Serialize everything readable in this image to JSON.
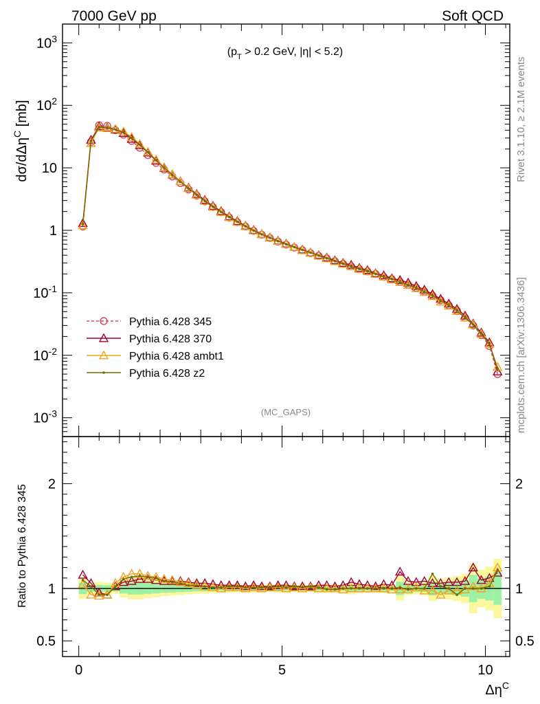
{
  "header": {
    "left": "7000 GeV pp",
    "right": "Soft QCD",
    "cut_label": "(p_T > 0.2 GeV, |η| < 5.2)",
    "watermark": "(MC_GAPS)",
    "side_rivet": "Rivet 3.1.10, ≥ 2.1M events",
    "side_mcplots": "mcplots.cern.ch [arXiv:1306.3436]"
  },
  "chart_data": [
    {
      "type": "line",
      "title": "",
      "xlabel": "Δη^C",
      "ylabel": "dσ/dΔη^C [mb]",
      "yscale": "log",
      "ylim": [
        0.0005,
        2000
      ],
      "xlim": [
        -0.4,
        10.6
      ],
      "y_ticks": [
        "10^-3",
        "10^-2",
        "10^-1",
        "1",
        "10",
        "10^2",
        "10^3"
      ],
      "legend_position": "middle-left",
      "x": [
        0.1,
        0.3,
        0.5,
        0.7,
        0.9,
        1.1,
        1.3,
        1.5,
        1.7,
        1.9,
        2.1,
        2.3,
        2.5,
        2.7,
        2.9,
        3.1,
        3.3,
        3.5,
        3.7,
        3.9,
        4.1,
        4.3,
        4.5,
        4.7,
        4.9,
        5.1,
        5.3,
        5.5,
        5.7,
        5.9,
        6.1,
        6.3,
        6.5,
        6.7,
        6.9,
        7.1,
        7.3,
        7.5,
        7.7,
        7.9,
        8.1,
        8.3,
        8.5,
        8.7,
        8.9,
        9.1,
        9.3,
        9.5,
        9.7,
        9.9,
        10.1,
        10.3
      ],
      "series": [
        {
          "name": "Pythia 6.428 345",
          "color": "#d6475a",
          "marker": "circle-open",
          "dashed": true,
          "values": [
            1.15,
            26,
            48,
            47,
            40,
            34,
            27,
            21,
            16,
            12,
            9.4,
            7.3,
            5.7,
            4.5,
            3.6,
            2.9,
            2.35,
            1.95,
            1.6,
            1.35,
            1.15,
            0.98,
            0.85,
            0.75,
            0.66,
            0.59,
            0.53,
            0.48,
            0.43,
            0.39,
            0.355,
            0.32,
            0.29,
            0.265,
            0.24,
            0.22,
            0.2,
            0.18,
            0.165,
            0.15,
            0.135,
            0.12,
            0.105,
            0.09,
            0.076,
            0.063,
            0.052,
            0.04,
            0.03,
            0.021,
            0.014,
            0.005
          ]
        },
        {
          "name": "Pythia 6.428 370",
          "color": "#a3002e",
          "marker": "triangle-open",
          "dashed": false,
          "values": [
            1.3,
            28,
            46,
            44,
            41,
            36,
            29,
            23,
            17.5,
            13,
            10,
            7.8,
            6.1,
            4.8,
            3.8,
            3.05,
            2.45,
            2.02,
            1.66,
            1.4,
            1.18,
            1.01,
            0.87,
            0.77,
            0.68,
            0.61,
            0.54,
            0.49,
            0.44,
            0.4,
            0.365,
            0.33,
            0.3,
            0.28,
            0.25,
            0.23,
            0.205,
            0.19,
            0.17,
            0.16,
            0.145,
            0.128,
            0.112,
            0.095,
            0.08,
            0.067,
            0.055,
            0.043,
            0.032,
            0.023,
            0.016,
            0.0055
          ]
        },
        {
          "name": "Pythia 6.428 ambt1",
          "color": "#f0a41e",
          "marker": "triangle-open",
          "dashed": false,
          "values": [
            1.2,
            25,
            44,
            43,
            42,
            38,
            31,
            24,
            18,
            13.5,
            10.2,
            7.9,
            6.1,
            4.7,
            3.7,
            2.95,
            2.37,
            1.96,
            1.62,
            1.36,
            1.16,
            0.99,
            0.86,
            0.76,
            0.67,
            0.6,
            0.54,
            0.48,
            0.435,
            0.39,
            0.355,
            0.32,
            0.29,
            0.265,
            0.24,
            0.22,
            0.2,
            0.18,
            0.163,
            0.148,
            0.133,
            0.118,
            0.103,
            0.088,
            0.072,
            0.062,
            0.051,
            0.04,
            0.031,
            0.022,
            0.015,
            0.0065
          ]
        },
        {
          "name": "Pythia 6.428 z2",
          "color": "#6e6e00",
          "marker": "dot",
          "dashed": false,
          "values": [
            1.25,
            27,
            45,
            44,
            41,
            37,
            30,
            23.5,
            17.8,
            13.2,
            10,
            7.7,
            6,
            4.65,
            3.7,
            2.95,
            2.38,
            1.97,
            1.63,
            1.37,
            1.16,
            0.99,
            0.86,
            0.76,
            0.67,
            0.6,
            0.54,
            0.485,
            0.44,
            0.395,
            0.355,
            0.32,
            0.29,
            0.265,
            0.24,
            0.22,
            0.2,
            0.18,
            0.165,
            0.15,
            0.134,
            0.12,
            0.104,
            0.09,
            0.075,
            0.063,
            0.052,
            0.04,
            0.031,
            0.022,
            0.015,
            0.006
          ]
        }
      ]
    },
    {
      "type": "line",
      "title": "",
      "xlabel": "Δη^C",
      "ylabel": "Ratio to Pythia 6.428 345",
      "ylim": [
        0.35,
        2.45
      ],
      "xlim": [
        -0.4,
        10.6
      ],
      "y_ticks": [
        "0.5",
        "1",
        "2"
      ],
      "x_ticks": [
        "0",
        "5",
        "10"
      ],
      "reference_line": 1,
      "x": [
        0.1,
        0.3,
        0.5,
        0.7,
        0.9,
        1.1,
        1.3,
        1.5,
        1.7,
        1.9,
        2.1,
        2.3,
        2.5,
        2.7,
        2.9,
        3.1,
        3.3,
        3.5,
        3.7,
        3.9,
        4.1,
        4.3,
        4.5,
        4.7,
        4.9,
        5.1,
        5.3,
        5.5,
        5.7,
        5.9,
        6.1,
        6.3,
        6.5,
        6.7,
        6.9,
        7.1,
        7.3,
        7.5,
        7.7,
        7.9,
        8.1,
        8.3,
        8.5,
        8.7,
        8.9,
        9.1,
        9.3,
        9.5,
        9.7,
        9.9,
        10.1,
        10.3
      ],
      "series": [
        {
          "name": "Pythia 6.428 370",
          "color": "#a3002e",
          "marker": "triangle-open",
          "values": [
            1.13,
            1.05,
            0.96,
            0.94,
            1.02,
            1.06,
            1.07,
            1.09,
            1.09,
            1.08,
            1.07,
            1.07,
            1.07,
            1.06,
            1.05,
            1.05,
            1.04,
            1.03,
            1.03,
            1.03,
            1.02,
            1.03,
            1.02,
            1.02,
            1.03,
            1.03,
            1.02,
            1.02,
            1.02,
            1.03,
            1.03,
            1.02,
            1.03,
            1.06,
            1.04,
            1.03,
            1.02,
            1.04,
            1.03,
            1.16,
            1.07,
            1.06,
            1.07,
            1.05,
            1.05,
            1.06,
            1.06,
            1.07,
            1.2,
            1.08,
            1.1,
            1.15
          ]
        },
        {
          "name": "Pythia 6.428 ambt1",
          "color": "#f0a41e",
          "marker": "triangle-open",
          "values": [
            1.04,
            0.94,
            0.93,
            0.94,
            1.05,
            1.11,
            1.14,
            1.14,
            1.12,
            1.11,
            1.09,
            1.08,
            1.06,
            1.05,
            1.03,
            1.02,
            1.01,
            1.0,
            1.01,
            1.01,
            1.0,
            1.01,
            1.0,
            1.01,
            1.01,
            1.0,
            1.01,
            1.0,
            1.01,
            1.0,
            1.0,
            1.0,
            0.99,
            1.0,
            1.0,
            1.0,
            1.0,
            1.0,
            0.99,
            0.99,
            0.99,
            1.01,
            0.98,
            0.98,
            0.94,
            0.98,
            0.98,
            0.99,
            1.02,
            1.0,
            1.05,
            1.2
          ]
        },
        {
          "name": "Pythia 6.428 z2",
          "color": "#6e6e00",
          "marker": "dot",
          "values": [
            1.08,
            1.02,
            0.94,
            0.94,
            1.02,
            1.09,
            1.11,
            1.12,
            1.11,
            1.1,
            1.07,
            1.06,
            1.05,
            1.03,
            1.03,
            1.02,
            1.01,
            1.01,
            1.02,
            1.02,
            1.01,
            1.01,
            1.01,
            1.01,
            1.02,
            1.01,
            1.02,
            1.01,
            1.02,
            1.01,
            0.99,
            0.99,
            1.0,
            1.0,
            1.0,
            1.0,
            1.0,
            1.0,
            1.0,
            1.01,
            0.99,
            1.0,
            1.0,
            1.14,
            1.02,
            1.0,
            0.94,
            1.0,
            1.0,
            1.0,
            1.02,
            1.17
          ]
        }
      ]
    }
  ]
}
